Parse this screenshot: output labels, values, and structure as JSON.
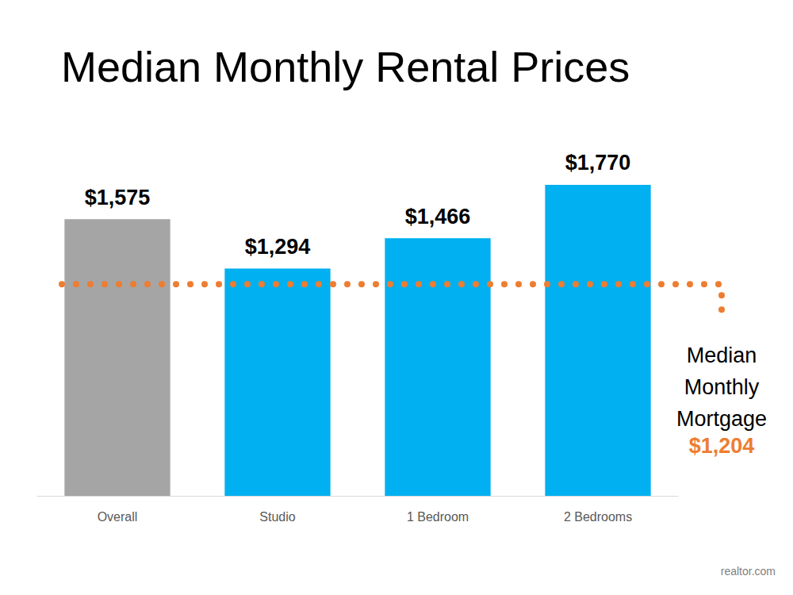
{
  "chart_data": {
    "type": "bar",
    "title": "Median Monthly Rental Prices",
    "categories": [
      "Overall",
      "Studio",
      "1 Bedroom",
      "2 Bedrooms"
    ],
    "values": [
      1575,
      1294,
      1466,
      1770
    ],
    "value_labels": [
      "$1,575",
      "$1,294",
      "$1,466",
      "$1,770"
    ],
    "colors": [
      "#a5a5a5",
      "#00b0f0",
      "#00b0f0",
      "#00b0f0"
    ],
    "ylim": [
      0,
      2000
    ],
    "grid": false,
    "tick_labels": "x",
    "data_labels": true,
    "annotations": [
      {
        "text": "Median Monthly Mortgage",
        "value": 1204,
        "value_label": "$1,204",
        "color": "#ed7d31",
        "line_style": "dotted"
      }
    ],
    "source": "realtor.com"
  }
}
